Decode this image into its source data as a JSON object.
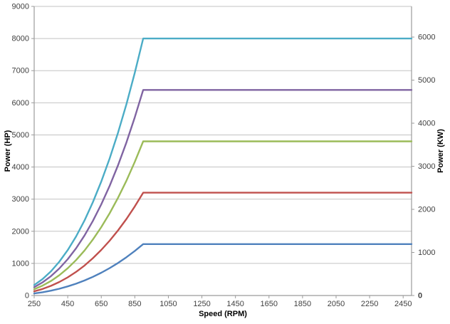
{
  "chart_data": {
    "type": "line",
    "title": "",
    "xlabel": "Speed (RPM)",
    "ylabel_left": "Power (HP)",
    "ylabel_right": "Power (KW)",
    "grid": true,
    "legend": "none",
    "x_axis": {
      "min": 250,
      "max": 2500,
      "ticks": [
        250,
        450,
        650,
        850,
        1050,
        1250,
        1450,
        1650,
        1850,
        2050,
        2250,
        2450
      ]
    },
    "left_axis": {
      "min": 0,
      "max": 9000,
      "ticks": [
        0,
        1000,
        2000,
        3000,
        4000,
        5000,
        6000,
        7000,
        8000,
        9000
      ]
    },
    "right_axis": {
      "min": 0,
      "ticks": [
        0,
        1000,
        2000,
        3000,
        4000,
        5000,
        6000
      ],
      "kw_per_hp": 0.7457,
      "zero_bold": true
    },
    "x": [
      250,
      300,
      350,
      400,
      450,
      500,
      550,
      600,
      650,
      700,
      750,
      800,
      850,
      900,
      2500
    ],
    "series": [
      {
        "color_name": "blue",
        "color": "#4F81BD",
        "plateau_hp": 1600,
        "knee_rpm": 900,
        "values": [
          65,
          103,
          151,
          211,
          283,
          368,
          467,
          581,
          709,
          854,
          1014,
          1192,
          1387,
          1600,
          1600
        ]
      },
      {
        "color_name": "red",
        "color": "#C0504D",
        "plateau_hp": 3200,
        "knee_rpm": 900,
        "values": [
          130,
          205,
          302,
          421,
          566,
          736,
          934,
          1161,
          1419,
          1707,
          2029,
          2384,
          2774,
          3200,
          3200
        ]
      },
      {
        "color_name": "green",
        "color": "#9BBB59",
        "plateau_hp": 4800,
        "knee_rpm": 900,
        "values": [
          195,
          308,
          452,
          632,
          849,
          1104,
          1401,
          1742,
          2128,
          2561,
          3043,
          3576,
          4161,
          4800,
          4800
        ]
      },
      {
        "color_name": "purple",
        "color": "#8064A2",
        "plateau_hp": 6400,
        "knee_rpm": 900,
        "values": [
          260,
          411,
          603,
          843,
          1131,
          1472,
          1868,
          2322,
          2837,
          3414,
          4057,
          4768,
          5548,
          6400,
          6400
        ]
      },
      {
        "color_name": "teal",
        "color": "#4BACC6",
        "plateau_hp": 8000,
        "knee_rpm": 900,
        "values": [
          326,
          513,
          754,
          1053,
          1414,
          1840,
          2336,
          2903,
          3546,
          4268,
          5072,
          5959,
          6935,
          8000,
          8000
        ]
      }
    ]
  },
  "colors": {
    "background": "#FFFFFF",
    "gridline": "#C3C3C3",
    "axis": "#9B9B9B",
    "tick_text": "#3F3F3F"
  }
}
